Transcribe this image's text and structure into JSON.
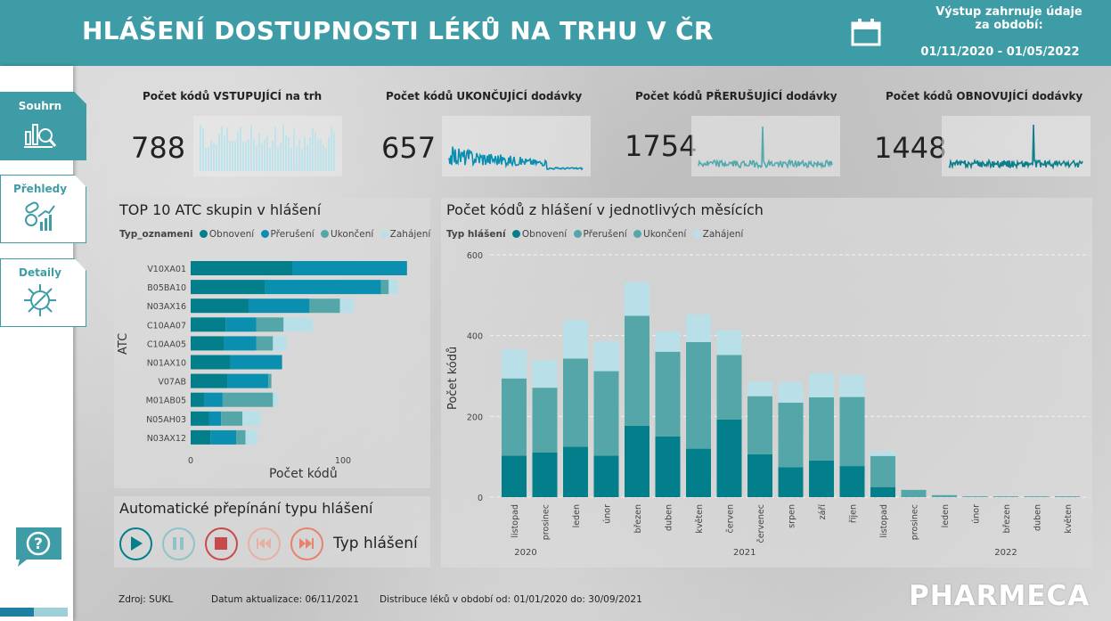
{
  "header": {
    "title": "HLÁŠENÍ DOSTUPNOSTI LÉKŮ NA TRHU V ČR",
    "period_label_line1": "Výstup zahrnuje údaje",
    "period_label_line2": "za období:",
    "period_value": "01/11/2020 - 01/05/2022"
  },
  "sidebar": {
    "items": [
      {
        "label": "Souhrn",
        "icon": "summary-icon",
        "active": true
      },
      {
        "label": "Přehledy",
        "icon": "overview-icon",
        "active": false
      },
      {
        "label": "Detaily",
        "icon": "details-icon",
        "active": false
      }
    ],
    "help_icon": "question-icon",
    "progress": 0.5
  },
  "kpis": [
    {
      "title": "Počet kódů VSTUPUJÍCÍ na trh",
      "value": "788",
      "color": "#bfe3ea"
    },
    {
      "title": "Počet kódů UKONČUJÍCÍ dodávky",
      "value": "657",
      "color": "#0a8fb0"
    },
    {
      "title": "Počet kódů PŘERUŠUJÍCÍ dodávky",
      "value": "1754",
      "color": "#53a9ad"
    },
    {
      "title": "Počet kódů OBNOVUJÍCÍ dodávky",
      "value": "1448",
      "color": "#0c7f8b"
    }
  ],
  "colors": {
    "obnoveni": "#037f8c",
    "preruseni": "#0a8fb0",
    "ukonceni": "#55a6a8",
    "zahajeni": "#b9e0e8"
  },
  "atc_panel": {
    "title": "TOP 10 ATC skupin v hlášení",
    "legend_title": "Typ_oznameni",
    "legend": [
      "Obnovení",
      "Přerušení",
      "Ukončení",
      "Zahájení"
    ],
    "ylabel": "ATC",
    "xlabel": "Počet kódů"
  },
  "month_panel": {
    "title": "Počet kódů z hlášení v jednotlivých měsících",
    "legend_title": "Typ hlášení",
    "legend": [
      "Obnovení",
      "Přerušení",
      "Ukončení",
      "Zahájení"
    ],
    "ylabel": "Počet kódů"
  },
  "playback": {
    "title": "Automatické přepínání typu hlášení",
    "label": "Typ hlášení",
    "buttons": [
      {
        "name": "play-button",
        "icon": "play-icon",
        "color": "#037f8c"
      },
      {
        "name": "pause-button",
        "icon": "pause-icon",
        "color": "#8ec3cc"
      },
      {
        "name": "stop-button",
        "icon": "stop-icon",
        "color": "#c94a4a"
      },
      {
        "name": "previous-button",
        "icon": "skip-back-icon",
        "color": "#e8b0a4"
      },
      {
        "name": "next-button",
        "icon": "skip-forward-icon",
        "color": "#e8826c"
      }
    ]
  },
  "footer": {
    "source": "Zdroj: SUKL",
    "updated": "Datum aktualizace:  06/11/2021",
    "distribution": "Distribuce léků v období od: 01/01/2020 do: 30/09/2021",
    "logo": "PHARMECA"
  },
  "chart_data": [
    {
      "type": "bar",
      "orientation": "horizontal",
      "stacked": true,
      "title": "TOP 10 ATC skupin v hlášení",
      "xlabel": "Počet kódů",
      "ylabel": "ATC",
      "categories": [
        "V10XA01",
        "B05BA10",
        "N03AX16",
        "C10AA07",
        "C10AA05",
        "N01AX10",
        "V07AB",
        "M01AB05",
        "N05AH03",
        "N03AX12"
      ],
      "xticks": [
        0,
        100
      ],
      "xlim": [
        0,
        150
      ],
      "series": [
        {
          "name": "Obnovení",
          "values": [
            67,
            49,
            38,
            23,
            22,
            26,
            24,
            9,
            12,
            13
          ]
        },
        {
          "name": "Přerušení",
          "values": [
            75,
            76,
            40,
            20,
            21,
            34,
            27,
            12,
            8,
            17
          ]
        },
        {
          "name": "Ukončení",
          "values": [
            0,
            5,
            20,
            18,
            11,
            0,
            2,
            33,
            14,
            6
          ]
        },
        {
          "name": "Zahájení",
          "values": [
            0,
            6,
            9,
            19,
            9,
            0,
            0,
            3,
            12,
            8
          ]
        }
      ]
    },
    {
      "type": "bar",
      "stacked": true,
      "title": "Počet kódů z hlášení v jednotlivých měsících",
      "ylabel": "Počet kódů",
      "ylim": [
        0,
        600
      ],
      "yticks": [
        0,
        200,
        400,
        600
      ],
      "categories": [
        "listopad",
        "prosinec",
        "leden",
        "únor",
        "březen",
        "duben",
        "květen",
        "červen",
        "červenec",
        "srpen",
        "září",
        "říjen",
        "listopad",
        "prosinec",
        "leden",
        "únor",
        "březen",
        "duben",
        "květen"
      ],
      "year_labels": [
        {
          "label": "2020",
          "start": 0,
          "end": 1
        },
        {
          "label": "2021",
          "start": 2,
          "end": 13
        },
        {
          "label": "2022",
          "start": 14,
          "end": 18
        }
      ],
      "series": [
        {
          "name": "Obnovení",
          "values": [
            103,
            111,
            125,
            103,
            177,
            150,
            120,
            192,
            106,
            74,
            91,
            77,
            25,
            0,
            0,
            0,
            0,
            0,
            0
          ]
        },
        {
          "name": "Přerušení",
          "values": [
            0,
            0,
            0,
            0,
            0,
            0,
            0,
            0,
            0,
            0,
            0,
            0,
            0,
            0,
            0,
            0,
            0,
            0,
            0
          ]
        },
        {
          "name": "Ukončení",
          "values": [
            191,
            160,
            218,
            209,
            272,
            210,
            264,
            160,
            144,
            160,
            156,
            171,
            77,
            18,
            5,
            2,
            2,
            2,
            2
          ]
        },
        {
          "name": "Zahájení",
          "values": [
            72,
            68,
            95,
            74,
            83,
            50,
            68,
            61,
            36,
            51,
            60,
            55,
            12,
            0,
            0,
            0,
            0,
            0,
            0
          ]
        }
      ]
    }
  ]
}
